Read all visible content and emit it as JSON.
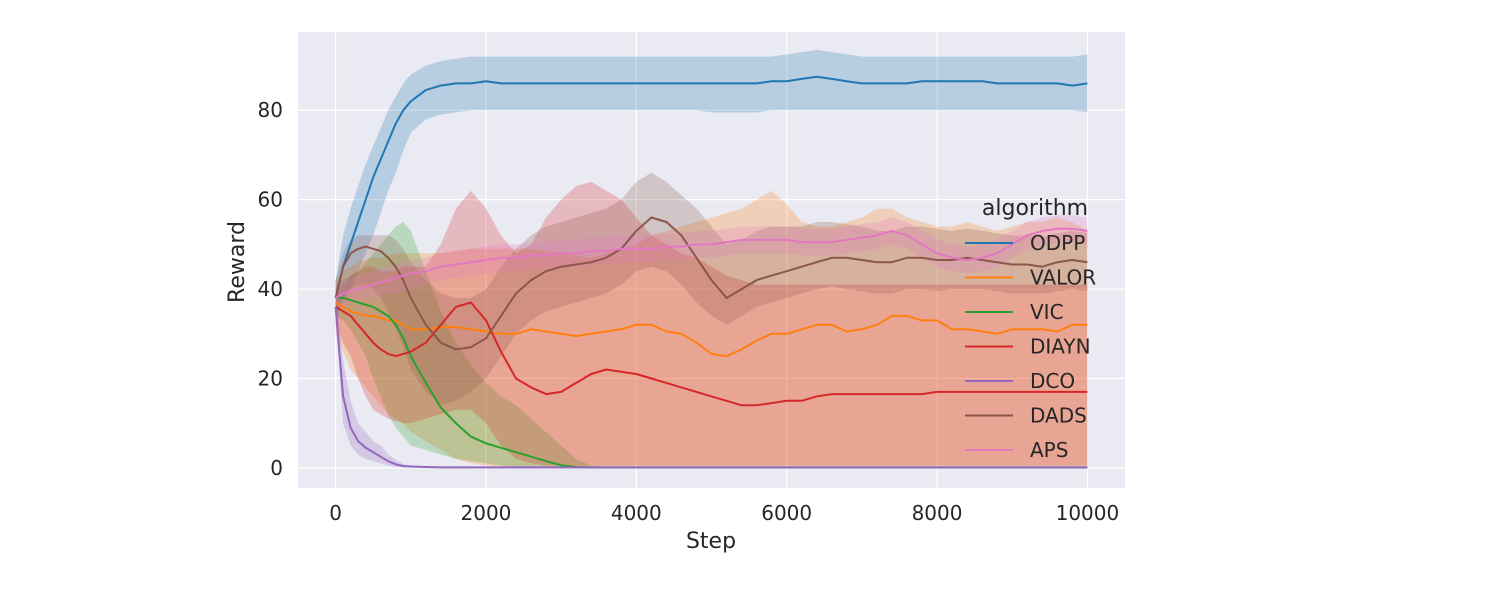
{
  "chart_data": {
    "type": "line",
    "xlabel": "Step",
    "ylabel": "Reward",
    "xlim": [
      -500,
      10500
    ],
    "ylim": [
      -4.5,
      97.5
    ],
    "xticks": [
      0,
      2000,
      4000,
      6000,
      8000,
      10000
    ],
    "yticks": [
      0,
      20,
      40,
      60,
      80
    ],
    "grid": true,
    "legend": {
      "title": "algorithm",
      "placement": "center-right"
    },
    "x": [
      0,
      100,
      200,
      300,
      400,
      500,
      600,
      700,
      800,
      900,
      1000,
      1200,
      1400,
      1600,
      1800,
      2000,
      2200,
      2400,
      2600,
      2800,
      3000,
      3200,
      3400,
      3600,
      3800,
      4000,
      4200,
      4400,
      4600,
      4800,
      5000,
      5200,
      5400,
      5600,
      5800,
      6000,
      6200,
      6400,
      6600,
      6800,
      7000,
      7200,
      7400,
      7600,
      7800,
      8000,
      8200,
      8400,
      8600,
      8800,
      9000,
      9200,
      9400,
      9600,
      9800,
      10000
    ],
    "series": [
      {
        "name": "ODPP",
        "color": "#1f77b4",
        "values": [
          38,
          45,
          50,
          55,
          60,
          65,
          69,
          73,
          77,
          80,
          82,
          84.5,
          85.5,
          86,
          86,
          86.5,
          86,
          86,
          86,
          86,
          86,
          86,
          86,
          86,
          86,
          86,
          86,
          86,
          86,
          86,
          86,
          86,
          86,
          86,
          86.5,
          86.5,
          87,
          87.5,
          87,
          86.5,
          86,
          86,
          86,
          86,
          86.5,
          86.5,
          86.5,
          86.5,
          86.5,
          86,
          86,
          86,
          86,
          86,
          85.5,
          86
        ],
        "lower": [
          33,
          37,
          40,
          44,
          48,
          52,
          57,
          62,
          66,
          71,
          75,
          78,
          79,
          79.5,
          80,
          80,
          80,
          80,
          80,
          80,
          80,
          80,
          80,
          80,
          80,
          80,
          80,
          80,
          80,
          80,
          79.5,
          79.5,
          79.5,
          79.5,
          80,
          80,
          80,
          80,
          80,
          80,
          80,
          80,
          80,
          80,
          80,
          80,
          80,
          80,
          80,
          80,
          80,
          80,
          80,
          80,
          80,
          79.5
        ],
        "upper": [
          42,
          52,
          58,
          63,
          68,
          72,
          76,
          80,
          83,
          86,
          88,
          90,
          91,
          91.5,
          92,
          92,
          92,
          92,
          92,
          92,
          92,
          92,
          92,
          92,
          92,
          92,
          92,
          92,
          92,
          92,
          92,
          92,
          92,
          92,
          92,
          92.5,
          93,
          93.5,
          93,
          92.5,
          92,
          92,
          92,
          92,
          92,
          92,
          92,
          92,
          92,
          92,
          92,
          92,
          92,
          92,
          92,
          92.5
        ]
      },
      {
        "name": "VALOR",
        "color": "#ff7f0e",
        "values": [
          37,
          36,
          35,
          34.5,
          34,
          34,
          33.5,
          33,
          33,
          32,
          31,
          31,
          31.5,
          31.5,
          31,
          30.5,
          30,
          30,
          31,
          30.5,
          30,
          29.5,
          30,
          30.5,
          31,
          32,
          32,
          30.5,
          30,
          28,
          25.5,
          25,
          26.5,
          28.5,
          30,
          30,
          31,
          32,
          32,
          30.5,
          31,
          32,
          34,
          34,
          33,
          33,
          31,
          31,
          30.5,
          30,
          31,
          31,
          31,
          30.5,
          32,
          32
        ],
        "lower": [
          30,
          26,
          22,
          20,
          18,
          16,
          14,
          12,
          11,
          10,
          8,
          6,
          4,
          2,
          1,
          0.5,
          0,
          0,
          0,
          0,
          0,
          0,
          0,
          0,
          0,
          0,
          0,
          0,
          0,
          0,
          0,
          0,
          0,
          0,
          0,
          0,
          0,
          0,
          0,
          0,
          0,
          0,
          0,
          0,
          0,
          0,
          0,
          0,
          0,
          0,
          0,
          0,
          0,
          0,
          0,
          0
        ],
        "upper": [
          42,
          44,
          45,
          46,
          46.5,
          47,
          47,
          47.5,
          48,
          48,
          48,
          48,
          48,
          48.5,
          49,
          49,
          49,
          49,
          49,
          48.5,
          48,
          47.5,
          47,
          48,
          49,
          50,
          52,
          53,
          54,
          55,
          56,
          57,
          58,
          60,
          62,
          59,
          55,
          54,
          54,
          55,
          56,
          58,
          58,
          56,
          55,
          54,
          54,
          55,
          54,
          53,
          54,
          55,
          55,
          56,
          55,
          53
        ]
      },
      {
        "name": "VIC",
        "color": "#2ca02c",
        "values": [
          38,
          38,
          37.5,
          37,
          36.5,
          36,
          35,
          34,
          32,
          29,
          25,
          19,
          13.5,
          10,
          7,
          5.5,
          4.5,
          3.5,
          2.5,
          1.5,
          0.6,
          0.2,
          0.1,
          0.1,
          0.1,
          0.1,
          0.1,
          0.1,
          0.1,
          0.1,
          0.1,
          0.1,
          0.1,
          0.1,
          0.1,
          0.1,
          0.1,
          0.1,
          0.1,
          0.1,
          0.1,
          0.1,
          0.1,
          0.1,
          0.1,
          0.1,
          0.1,
          0.1,
          0.1,
          0.1,
          0.1,
          0.1,
          0.1,
          0.1,
          0.1,
          0.1
        ],
        "lower": [
          34,
          33,
          31,
          28,
          25,
          20,
          16,
          12,
          9,
          7,
          5,
          4,
          3,
          2,
          1.5,
          1,
          0.5,
          0.2,
          0,
          0,
          0,
          0,
          0,
          0,
          0,
          0,
          0,
          0,
          0,
          0,
          0,
          0,
          0,
          0,
          0,
          0,
          0,
          0,
          0,
          0,
          0,
          0,
          0,
          0,
          0,
          0,
          0,
          0,
          0,
          0,
          0,
          0,
          0,
          0,
          0,
          0
        ],
        "upper": [
          41,
          42,
          43,
          44,
          46,
          48,
          50,
          52,
          54,
          55,
          53,
          44,
          35,
          28,
          23,
          19,
          16,
          14,
          11,
          8,
          5,
          2,
          0.5,
          0.2,
          0.1,
          0.1,
          0.1,
          0.1,
          0.1,
          0.1,
          0.1,
          0.1,
          0.1,
          0.1,
          0.1,
          0.1,
          0.1,
          0.1,
          0.1,
          0.1,
          0.1,
          0.1,
          0.1,
          0.1,
          0.1,
          0.1,
          0.1,
          0.1,
          0.1,
          0.1,
          0.1,
          0.1,
          0.1,
          0.1,
          0.1,
          0.1
        ]
      },
      {
        "name": "DIAYN",
        "color": "#d62728",
        "values": [
          36,
          35,
          34,
          32,
          30,
          28,
          26.5,
          25.5,
          25,
          25.5,
          26,
          28,
          32,
          36,
          37,
          33,
          26,
          20,
          18,
          16.5,
          17,
          19,
          21,
          22,
          21.5,
          21,
          20,
          19,
          18,
          17,
          16,
          15,
          14,
          14,
          14.5,
          15,
          15,
          16,
          16.5,
          16.5,
          16.5,
          16.5,
          16.5,
          16.5,
          16.5,
          17,
          17,
          17,
          17,
          17,
          17,
          17,
          17,
          17,
          17,
          17
        ],
        "lower": [
          32,
          28,
          25,
          20,
          16,
          13,
          12,
          11,
          10.5,
          10,
          10,
          11,
          12,
          13,
          13,
          10,
          5,
          2,
          1,
          0.5,
          0.5,
          0.5,
          0.5,
          0.5,
          0.5,
          0.5,
          0.5,
          0.5,
          0.5,
          0.5,
          0.5,
          0.5,
          0.5,
          0.5,
          0.5,
          0.5,
          0.5,
          0.5,
          0.5,
          0.5,
          0.5,
          0.5,
          0.5,
          0.5,
          0.5,
          0.5,
          0.5,
          0.5,
          0.5,
          0.5,
          0.5,
          0.5,
          0.5,
          0.5,
          0.5,
          0.5
        ],
        "upper": [
          40,
          41,
          43,
          44,
          45,
          45,
          44,
          44,
          44,
          45,
          45,
          45,
          50,
          58,
          62,
          58,
          52,
          48,
          50,
          56,
          60,
          63,
          64,
          62,
          60,
          56,
          52,
          50,
          48,
          47,
          45,
          43,
          42,
          41,
          41,
          41,
          41,
          41,
          41,
          41,
          41,
          41,
          41,
          41,
          41,
          41,
          41,
          41,
          41,
          41,
          41,
          41,
          41,
          41,
          41,
          41
        ]
      },
      {
        "name": "DCO",
        "color": "#9467bd",
        "values": [
          36,
          16,
          9,
          6,
          4.5,
          3.5,
          2.5,
          1.5,
          0.8,
          0.4,
          0.3,
          0.2,
          0.1,
          0.1,
          0.1,
          0.1,
          0.1,
          0.1,
          0.1,
          0.1,
          0.1,
          0.1,
          0.1,
          0.1,
          0.1,
          0.1,
          0.1,
          0.1,
          0.1,
          0.1,
          0.1,
          0.1,
          0.1,
          0.1,
          0.1,
          0.1,
          0.1,
          0.1,
          0.1,
          0.1,
          0.1,
          0.1,
          0.1,
          0.1,
          0.1,
          0.1,
          0.1,
          0.1,
          0.1,
          0.1,
          0.1,
          0.1,
          0.1,
          0.1,
          0.1,
          0.1
        ],
        "lower": [
          33,
          10,
          5,
          3,
          2,
          1.5,
          1,
          0.5,
          0.2,
          0.1,
          0,
          0,
          0,
          0,
          0,
          0,
          0,
          0,
          0,
          0,
          0,
          0,
          0,
          0,
          0,
          0,
          0,
          0,
          0,
          0,
          0,
          0,
          0,
          0,
          0,
          0,
          0,
          0,
          0,
          0,
          0,
          0,
          0,
          0,
          0,
          0,
          0,
          0,
          0,
          0,
          0,
          0,
          0,
          0,
          0,
          0
        ],
        "upper": [
          40,
          24,
          15,
          10,
          8,
          6,
          5,
          3,
          1.8,
          0.8,
          0.5,
          0.3,
          0.2,
          0.2,
          0.2,
          0.2,
          0.2,
          0.2,
          0.2,
          0.2,
          0.2,
          0.2,
          0.2,
          0.2,
          0.2,
          0.2,
          0.2,
          0.2,
          0.2,
          0.2,
          0.2,
          0.2,
          0.2,
          0.2,
          0.2,
          0.2,
          0.2,
          0.2,
          0.2,
          0.2,
          0.2,
          0.2,
          0.2,
          0.2,
          0.2,
          0.2,
          0.2,
          0.2,
          0.2,
          0.2,
          0.2,
          0.2,
          0.2,
          0.2,
          0.2,
          0.2
        ]
      },
      {
        "name": "DADS",
        "color": "#8c564b",
        "values": [
          38,
          45,
          48,
          49,
          49.5,
          49,
          48.5,
          47,
          45,
          42,
          38,
          32,
          28,
          26.5,
          27,
          29,
          34,
          39,
          42,
          44,
          45,
          45.5,
          46,
          47,
          49,
          53,
          56,
          55,
          52,
          47,
          42,
          38,
          40,
          42,
          43,
          44,
          45,
          46,
          47,
          47,
          46.5,
          46,
          46,
          47,
          47,
          46.5,
          46.5,
          47,
          46.5,
          46,
          45.5,
          45.5,
          45,
          46,
          46.5,
          46
        ],
        "lower": [
          34,
          38,
          40,
          41,
          41,
          40,
          38,
          35,
          31,
          27,
          22,
          17,
          14,
          15,
          17,
          20,
          25,
          30,
          33,
          35,
          36,
          37,
          38,
          39,
          41,
          44,
          45,
          44,
          41,
          37,
          34,
          32,
          34,
          36,
          37,
          38,
          39,
          40,
          40.5,
          40,
          39.5,
          39,
          39,
          40,
          40,
          39.5,
          40,
          40,
          40,
          39.5,
          39,
          39,
          39,
          39.5,
          40,
          39.5
        ],
        "upper": [
          42,
          48,
          51,
          52,
          52,
          52,
          52,
          52,
          51,
          49,
          46,
          42,
          39,
          38,
          38,
          40,
          45,
          49,
          52,
          54,
          55,
          56,
          57,
          58,
          60,
          64,
          66,
          64,
          61,
          58,
          54,
          50,
          51,
          53,
          54,
          54,
          54,
          55,
          55,
          54.5,
          54,
          53,
          53,
          54,
          54,
          53.5,
          53,
          53.5,
          53,
          52.5,
          52,
          52,
          51.5,
          52.5,
          53,
          52.5
        ]
      },
      {
        "name": "APS",
        "color": "#e377c2",
        "values": [
          38,
          39,
          39.5,
          40,
          40.5,
          41,
          41.5,
          42,
          42.5,
          43,
          43.5,
          44,
          45,
          45.5,
          46,
          46.5,
          47,
          47,
          47.5,
          47.5,
          48,
          48,
          48.5,
          48.5,
          49,
          49,
          49,
          49.5,
          49.5,
          50,
          50,
          50.5,
          51,
          51,
          51,
          51,
          50.5,
          50.5,
          50.5,
          51,
          51.5,
          52,
          53,
          52,
          50,
          48,
          47,
          46.5,
          47,
          48,
          50,
          52,
          53,
          53.5,
          53.5,
          53
        ],
        "lower": [
          35,
          36,
          37,
          37,
          37.5,
          38,
          38.5,
          39,
          39,
          39.5,
          40,
          41,
          42,
          42.5,
          43,
          43.5,
          44,
          44,
          44.5,
          44.5,
          45,
          45,
          45.5,
          45.5,
          46,
          46,
          46,
          46.5,
          46.5,
          47,
          47,
          47.5,
          48,
          48,
          48,
          48,
          47.5,
          47.5,
          47.5,
          48,
          48.5,
          49,
          50,
          49,
          47,
          45,
          44,
          43.5,
          44,
          45,
          47,
          49,
          50,
          50.5,
          50.5,
          50
        ],
        "upper": [
          41,
          42,
          42.5,
          43,
          43.5,
          44,
          44.5,
          45,
          45.5,
          46,
          46.5,
          47,
          48,
          48.5,
          49,
          49.5,
          50,
          50,
          50.5,
          50.5,
          51,
          51,
          51.5,
          51.5,
          52,
          52,
          52,
          52.5,
          52.5,
          53,
          53,
          53.5,
          54,
          54,
          54,
          54,
          53.5,
          53.5,
          53.5,
          54,
          54.5,
          55,
          56,
          55,
          53,
          51,
          50,
          49.5,
          50,
          51,
          53,
          55,
          56,
          56.5,
          56.5,
          56
        ]
      }
    ]
  }
}
